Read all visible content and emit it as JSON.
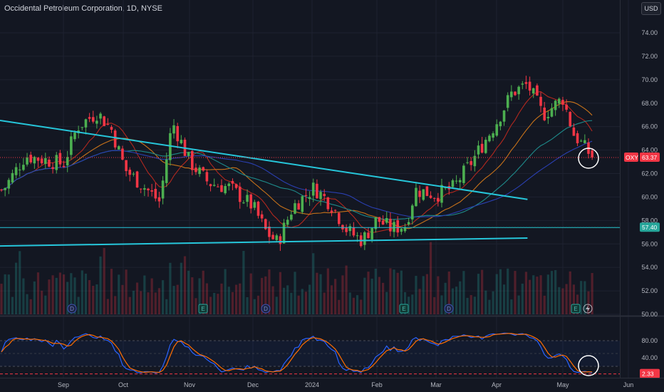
{
  "header": {
    "title": "Occidental Petroleum Corporation, 1D, NYSE",
    "currency": "USD"
  },
  "price_axis": {
    "ticks": [
      "74.00",
      "72.00",
      "70.00",
      "68.00",
      "66.00",
      "64.00",
      "62.00",
      "60.00",
      "58.00",
      "56.00",
      "54.00",
      "52.00",
      "50.00"
    ]
  },
  "osc_axis": {
    "ticks": [
      "80.00",
      "40.00"
    ]
  },
  "time_axis": {
    "labels": [
      "Sep",
      "Oct",
      "Nov",
      "Dec",
      "2024",
      "Feb",
      "Mar",
      "Apr",
      "May",
      "Jun"
    ]
  },
  "tags": {
    "symbol": "OXY",
    "last_price": "63.37",
    "level": "57.40",
    "osc_value": "2.33"
  },
  "colors": {
    "background": "#131722",
    "up": "#26a69a",
    "candle_up": "#4caf50",
    "candle_down": "#f23645",
    "trendline": "#26c6da",
    "ma_fast": "#b2281f",
    "ma_mid": "#c7721a",
    "ma_slow1": "#1e8a8a",
    "ma_slow2": "#2a3fb0",
    "stoch_k": "#2962ff",
    "stoch_d": "#ff6d00"
  },
  "events": [
    {
      "label": "D",
      "type": "dividend"
    },
    {
      "label": "E",
      "type": "earnings"
    },
    {
      "label": "D",
      "type": "dividend"
    },
    {
      "label": "E",
      "type": "earnings"
    },
    {
      "label": "D",
      "type": "dividend"
    },
    {
      "label": "E",
      "type": "earnings"
    }
  ],
  "chart_data": {
    "type": "candlestick",
    "title": "Occidental Petroleum Corporation, 1D, NYSE",
    "ylim": [
      50,
      75
    ],
    "x_labels": [
      "Sep",
      "Oct",
      "Nov",
      "Dec",
      "2024",
      "Feb",
      "Mar",
      "Apr",
      "May",
      "Jun"
    ],
    "last_price": 63.37,
    "horizontal_level": 57.4,
    "close_path": [
      {
        "x": "Aug 10",
        "y": 60.6
      },
      {
        "x": "Aug 18",
        "y": 63.5
      },
      {
        "x": "Aug 25",
        "y": 63.2
      },
      {
        "x": "Sep 1",
        "y": 62.8
      },
      {
        "x": "Sep 8",
        "y": 66.0
      },
      {
        "x": "Sep 18",
        "y": 67.2
      },
      {
        "x": "Sep 25",
        "y": 65.8
      },
      {
        "x": "Oct 2",
        "y": 62.3
      },
      {
        "x": "Oct 10",
        "y": 61.0
      },
      {
        "x": "Oct 18",
        "y": 59.6
      },
      {
        "x": "Oct 24",
        "y": 66.4
      },
      {
        "x": "Nov 1",
        "y": 63.0
      },
      {
        "x": "Nov 10",
        "y": 61.2
      },
      {
        "x": "Nov 20",
        "y": 60.8
      },
      {
        "x": "Dec 1",
        "y": 59.2
      },
      {
        "x": "Dec 8",
        "y": 57.0
      },
      {
        "x": "Dec 14",
        "y": 56.1
      },
      {
        "x": "Dec 22",
        "y": 59.2
      },
      {
        "x": "Jan 2",
        "y": 60.8
      },
      {
        "x": "Jan 10",
        "y": 59.4
      },
      {
        "x": "Jan 18",
        "y": 57.1
      },
      {
        "x": "Jan 25",
        "y": 56.3
      },
      {
        "x": "Feb 1",
        "y": 58.1
      },
      {
        "x": "Feb 8",
        "y": 57.3
      },
      {
        "x": "Feb 15",
        "y": 57.6
      },
      {
        "x": "Feb 20",
        "y": 60.6
      },
      {
        "x": "Mar 1",
        "y": 60.2
      },
      {
        "x": "Mar 10",
        "y": 60.8
      },
      {
        "x": "Mar 20",
        "y": 63.2
      },
      {
        "x": "Apr 1",
        "y": 66.4
      },
      {
        "x": "Apr 8",
        "y": 68.9
      },
      {
        "x": "Apr 15",
        "y": 69.6
      },
      {
        "x": "Apr 22",
        "y": 67.0
      },
      {
        "x": "May 1",
        "y": 68.4
      },
      {
        "x": "May 6",
        "y": 65.4
      },
      {
        "x": "May 10",
        "y": 64.5
      },
      {
        "x": "May 15",
        "y": 63.37
      }
    ],
    "series": [
      {
        "name": "Trendline (upper)",
        "points": [
          {
            "x": "Aug 1",
            "y": 66.8
          },
          {
            "x": "Apr 15",
            "y": 59.8
          }
        ]
      },
      {
        "name": "Trendline (lower)",
        "points": [
          {
            "x": "Aug 1",
            "y": 55.8
          },
          {
            "x": "Apr 15",
            "y": 56.5
          }
        ]
      }
    ],
    "oscillator": {
      "name": "Stochastic",
      "levels": [
        80,
        50,
        20
      ],
      "ticks": [
        80,
        40
      ],
      "last": 2.33
    }
  }
}
